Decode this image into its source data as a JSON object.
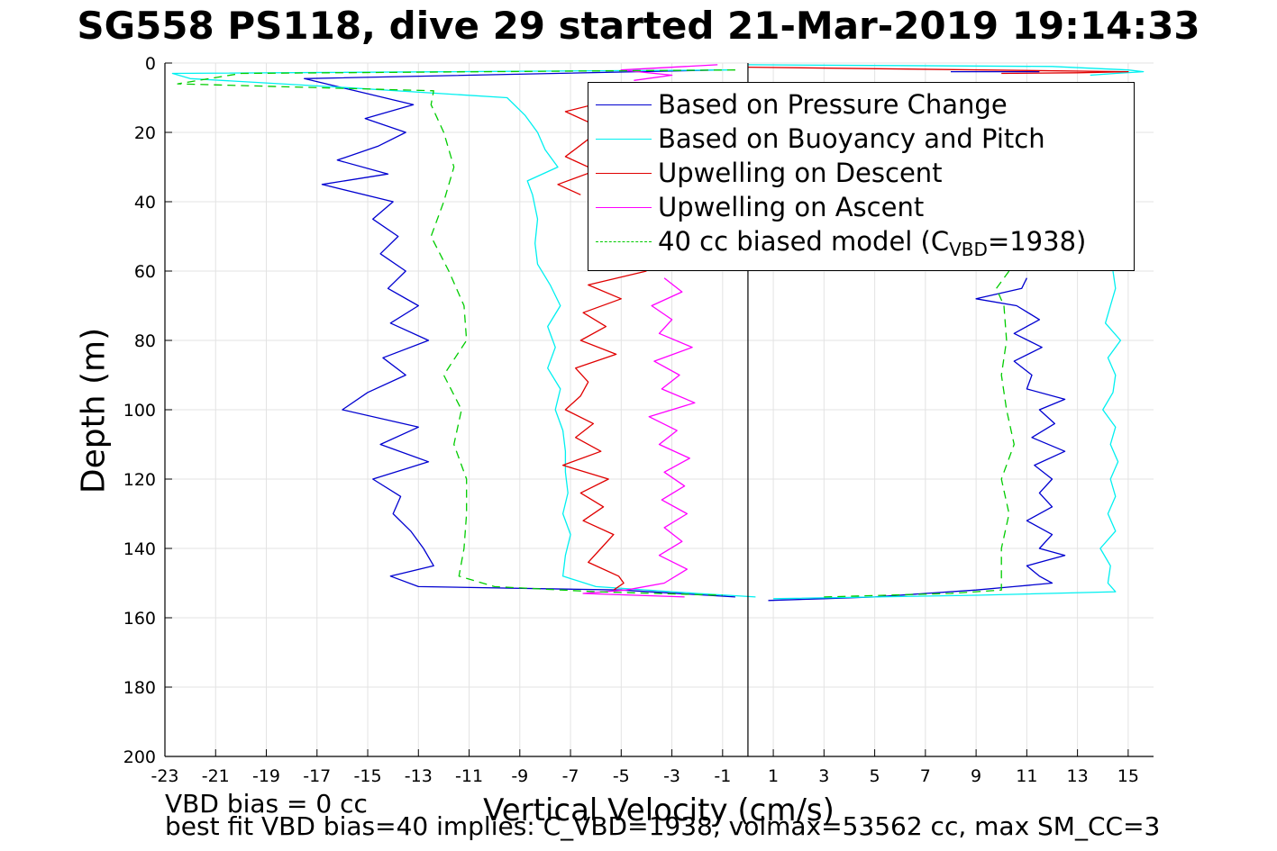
{
  "title": "SG558 PS118, dive 29 started 21-Mar-2019 19:14:33",
  "footer": {
    "line1": "VBD bias = 0 cc",
    "line2": "best fit VBD bias=40 implies: C_VBD=1938, volmax=53562 cc, max SM_CC=3"
  },
  "legend": [
    {
      "label": "Based on Pressure Change",
      "color": "#0000d0",
      "dash": false
    },
    {
      "label": "Based on Buoyancy and Pitch",
      "color": "#00f0f0",
      "dash": false
    },
    {
      "label": "Upwelling on Descent",
      "color": "#e00000",
      "dash": false
    },
    {
      "label": "Upwelling on Ascent",
      "color": "#ff00ff",
      "dash": false
    },
    {
      "label": "40 cc biased model (C",
      "sub": "VBD",
      "suffix": "=1938)",
      "color": "#00cc00",
      "dash": true
    }
  ],
  "chart_data": {
    "type": "line",
    "title": "SG558 PS118, dive 29 started 21-Mar-2019 19:14:33",
    "xlabel": "Vertical Velocity (cm/s)",
    "ylabel": "Depth (m)",
    "xlim": [
      -23,
      16
    ],
    "ylim": [
      200,
      0
    ],
    "y_reversed": true,
    "grid": true,
    "legend_position": "top-right",
    "xticks": [
      -23,
      -21,
      -19,
      -17,
      -15,
      -13,
      -11,
      -9,
      -7,
      -5,
      -3,
      -1,
      1,
      3,
      5,
      7,
      9,
      11,
      13,
      15
    ],
    "yticks": [
      0,
      20,
      40,
      60,
      80,
      100,
      120,
      140,
      160,
      180,
      200
    ],
    "vertical_line_x": 0,
    "series": [
      {
        "name": "Based on Pressure Change",
        "color": "#0000d0",
        "dash": false,
        "segments": [
          {
            "depth": [
              2,
              4.5,
              8,
              12,
              16,
              20,
              24,
              28,
              32,
              35,
              40,
              45,
              50,
              55,
              60,
              65,
              70,
              75,
              80,
              85,
              90,
              95,
              100,
              105,
              110,
              115,
              120,
              125,
              130,
              135,
              140,
              145,
              148,
              151,
              152,
              154
            ],
            "v": [
              -1.1,
              -17.5,
              -15.5,
              -13.2,
              -15.1,
              -13.5,
              -14.6,
              -16.2,
              -14.2,
              -16.8,
              -14.0,
              -14.8,
              -13.8,
              -14.5,
              -13.5,
              -14.2,
              -13.0,
              -14.1,
              -12.6,
              -14.4,
              -13.5,
              -15.0,
              -16.0,
              -13.0,
              -14.5,
              -12.6,
              -14.8,
              -13.7,
              -14.0,
              -13.3,
              -12.8,
              -12.4,
              -14.1,
              -13.0,
              -5.0,
              -0.5
            ]
          },
          {
            "depth": [
              155,
              154.5,
              154,
              153,
              152,
              151,
              150,
              148,
              145,
              142,
              140,
              136,
              132,
              128,
              124,
              120,
              116,
              112,
              108,
              104,
              100,
              97,
              94,
              90,
              86,
              82,
              78,
              74,
              70,
              68,
              65,
              62
            ],
            "v": [
              0.8,
              3.0,
              5.0,
              7.0,
              9.0,
              10.5,
              12.0,
              11.5,
              11.0,
              12.5,
              11.5,
              12.0,
              11.0,
              12.0,
              11.5,
              12.0,
              11.3,
              12.5,
              11.2,
              12.1,
              11.5,
              12.5,
              11.0,
              11.2,
              10.5,
              11.6,
              10.5,
              11.5,
              10.6,
              9.0,
              10.8,
              11.0
            ]
          },
          {
            "depth": [
              2.5,
              2.5
            ],
            "v": [
              8.0,
              11.5
            ]
          }
        ]
      },
      {
        "name": "Based on Buoyancy and Pitch",
        "color": "#00f0f0",
        "dash": false,
        "segments": [
          {
            "depth": [
              2,
              3,
              4.5,
              7,
              10,
              15,
              20,
              25,
              30,
              34,
              38,
              45,
              52,
              58,
              64,
              70,
              76,
              82,
              88,
              94,
              100,
              106,
              112,
              118,
              124,
              130,
              136,
              142,
              148,
              151,
              153,
              154
            ],
            "v": [
              -0.8,
              -22.7,
              -22.0,
              -16.0,
              -9.5,
              -8.8,
              -8.3,
              -8.0,
              -7.5,
              -8.7,
              -8.5,
              -8.3,
              -8.4,
              -8.3,
              -7.8,
              -7.4,
              -7.9,
              -7.6,
              -7.9,
              -7.4,
              -7.6,
              -7.3,
              -7.2,
              -7.2,
              -7.1,
              -7.3,
              -7.0,
              -7.2,
              -7.3,
              -6.0,
              -2.0,
              0.3
            ]
          },
          {
            "depth": [
              154.5,
              153.5,
              152.5,
              150,
              145,
              140,
              135,
              130,
              125,
              120,
              115,
              110,
              105,
              100,
              95,
              90,
              85,
              80,
              75,
              70,
              65,
              60
            ],
            "v": [
              1.0,
              9.0,
              14.5,
              14.2,
              14.3,
              13.9,
              14.5,
              14.2,
              14.5,
              14.3,
              14.6,
              14.3,
              14.5,
              14.0,
              14.4,
              14.5,
              14.2,
              14.7,
              14.1,
              14.3,
              14.5,
              14.4
            ]
          },
          {
            "depth": [
              0.5,
              1,
              2,
              2.5,
              3,
              3.5
            ],
            "v": [
              0.0,
              12.0,
              15.0,
              15.6,
              14.5,
              13.5
            ]
          }
        ]
      },
      {
        "name": "Upwelling on Descent",
        "color": "#e00000",
        "dash": false,
        "segments": [
          {
            "depth": [
              10,
              14,
              18,
              22,
              27,
              31,
              35,
              38
            ],
            "v": [
              -5.0,
              -7.2,
              -6.0,
              -6.3,
              -7.2,
              -6.0,
              -7.5,
              -6.6
            ]
          },
          {
            "depth": [
              60,
              64,
              68,
              72,
              76,
              80,
              84,
              88,
              92,
              96,
              100,
              104,
              108,
              112,
              116,
              120,
              124,
              128,
              132,
              136,
              140,
              144,
              148,
              150,
              152
            ],
            "v": [
              -4.0,
              -6.3,
              -5.0,
              -6.5,
              -5.6,
              -6.6,
              -5.2,
              -6.8,
              -6.3,
              -6.6,
              -7.2,
              -6.1,
              -6.8,
              -5.8,
              -7.3,
              -5.5,
              -6.6,
              -5.7,
              -6.5,
              -5.3,
              -5.8,
              -6.3,
              -5.1,
              -4.9,
              -5.3
            ]
          },
          {
            "depth": [
              1.2,
              2.5,
              2.8,
              3
            ],
            "v": [
              0.0,
              15.0,
              13.0,
              10.0
            ]
          }
        ]
      },
      {
        "name": "Upwelling on Ascent",
        "color": "#ff00ff",
        "dash": false,
        "segments": [
          {
            "depth": [
              0.5,
              2,
              3.5,
              5
            ],
            "v": [
              -1.2,
              -5.0,
              -3.0,
              -4.5
            ]
          },
          {
            "depth": [
              62,
              66,
              70,
              74,
              78,
              82,
              86,
              90,
              94,
              98,
              102,
              106,
              110,
              114,
              118,
              122,
              126,
              130,
              134,
              138,
              142,
              146,
              150,
              152,
              153,
              154
            ],
            "v": [
              -3.3,
              -2.6,
              -3.8,
              -3.0,
              -3.5,
              -2.2,
              -3.7,
              -2.7,
              -3.4,
              -2.1,
              -3.9,
              -2.8,
              -3.5,
              -2.3,
              -3.3,
              -2.5,
              -3.4,
              -2.4,
              -3.3,
              -2.6,
              -3.5,
              -2.4,
              -3.3,
              -4.8,
              -6.5,
              -2.5
            ]
          }
        ]
      },
      {
        "name": "40 cc biased model (CVBD=1938)",
        "color": "#00cc00",
        "dash": true,
        "segments": [
          {
            "depth": [
              2,
              3,
              6,
              8,
              12,
              20,
              30,
              40,
              50,
              60,
              70,
              80,
              90,
              100,
              110,
              120,
              130,
              140,
              148,
              151,
              152.5,
              153.5
            ],
            "v": [
              -0.5,
              -20.0,
              -22.5,
              -12.4,
              -12.5,
              -12.0,
              -11.6,
              -12.0,
              -12.5,
              -11.8,
              -11.2,
              -11.1,
              -12.0,
              -11.3,
              -11.6,
              -11.1,
              -11.1,
              -11.2,
              -11.4,
              -10.0,
              -6.0,
              -1.0
            ]
          },
          {
            "depth": [
              154,
              153,
              152,
              150,
              140,
              130,
              120,
              110,
              100,
              90,
              80,
              70,
              65,
              60
            ],
            "v": [
              3.0,
              8.0,
              10.0,
              10.0,
              10.0,
              10.3,
              10.0,
              10.5,
              10.2,
              10.0,
              10.2,
              10.1,
              9.8,
              10.3
            ]
          }
        ]
      }
    ]
  }
}
